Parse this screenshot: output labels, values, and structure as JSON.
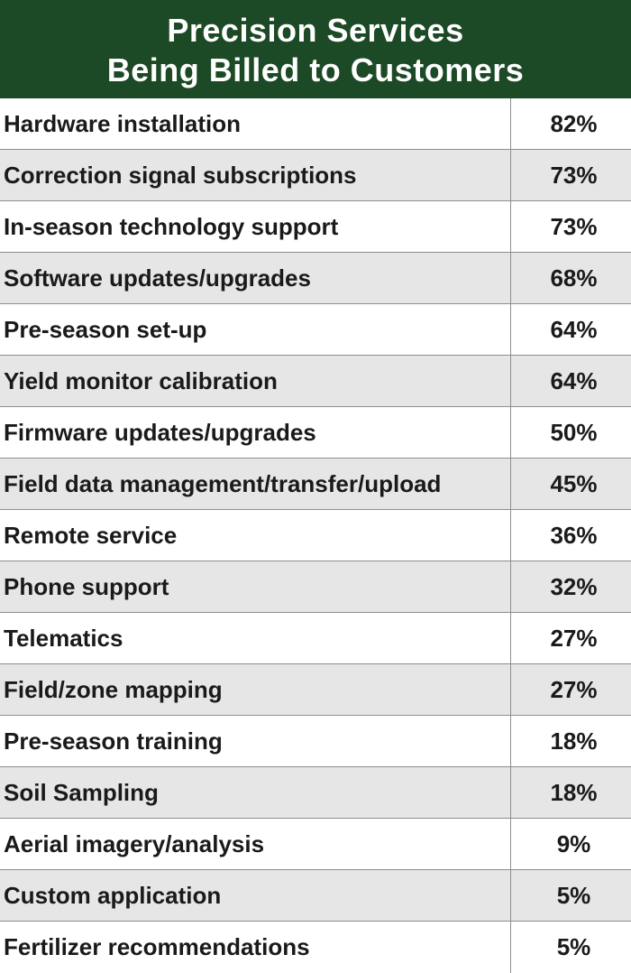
{
  "title": {
    "line1": "Precision Services",
    "line2": "Being Billed to Customers"
  },
  "colors": {
    "header_bg": "#1d4a26",
    "row_alt_bg": "#e6e6e7",
    "row_bg": "#ffffff",
    "border": "#8e8e8e"
  },
  "chart_data": {
    "type": "table",
    "title": "Precision Services Being Billed to Customers",
    "columns": [
      "",
      ""
    ],
    "rows": [
      {
        "service": "Hardware installation",
        "value": "82%"
      },
      {
        "service": "Correction signal subscriptions",
        "value": "73%"
      },
      {
        "service": "In-season technology support",
        "value": "73%"
      },
      {
        "service": "Software updates/upgrades",
        "value": "68%"
      },
      {
        "service": "Pre-season set-up",
        "value": "64%"
      },
      {
        "service": "Yield monitor calibration",
        "value": "64%"
      },
      {
        "service": "Firmware updates/upgrades",
        "value": "50%"
      },
      {
        "service": "Field data management/transfer/upload",
        "value": "45%"
      },
      {
        "service": "Remote service",
        "value": "36%"
      },
      {
        "service": "Phone support",
        "value": "32%"
      },
      {
        "service": "Telematics",
        "value": "27%"
      },
      {
        "service": "Field/zone mapping",
        "value": "27%"
      },
      {
        "service": "Pre-season training",
        "value": "18%"
      },
      {
        "service": "Soil Sampling",
        "value": "18%"
      },
      {
        "service": "Aerial imagery/analysis",
        "value": "9%"
      },
      {
        "service": "Custom application",
        "value": "5%"
      },
      {
        "service": "Fertilizer recommendations",
        "value": "5%"
      }
    ]
  }
}
